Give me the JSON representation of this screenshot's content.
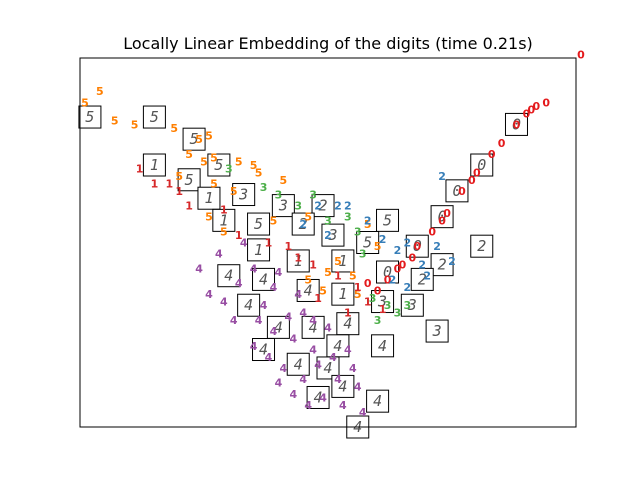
{
  "chart_data": {
    "type": "scatter",
    "title": "Locally Linear Embedding of the digits (time 0.21s)",
    "xlabel": "",
    "ylabel": "",
    "xlim": [
      0,
      1
    ],
    "ylim": [
      0,
      1
    ],
    "grid": false,
    "axis_ticks": false,
    "colors": {
      "0": "#e41a1c",
      "1": "#d62728",
      "2": "#377eb8",
      "3": "#4daf4a",
      "4": "#984ea3",
      "5": "#ff7f00"
    },
    "points": [
      {
        "label": "0",
        "x": 1.01,
        "y": 1.01
      },
      {
        "label": "0",
        "x": 0.92,
        "y": 0.87
      },
      {
        "label": "0",
        "x": 0.91,
        "y": 0.86
      },
      {
        "label": "0",
        "x": 0.9,
        "y": 0.85
      },
      {
        "label": "0",
        "x": 0.85,
        "y": 0.77
      },
      {
        "label": "0",
        "x": 0.83,
        "y": 0.74
      },
      {
        "label": "0",
        "x": 0.8,
        "y": 0.69
      },
      {
        "label": "0",
        "x": 0.77,
        "y": 0.64
      },
      {
        "label": "0",
        "x": 0.74,
        "y": 0.58
      },
      {
        "label": "0",
        "x": 0.71,
        "y": 0.53
      },
      {
        "label": "0",
        "x": 0.68,
        "y": 0.49
      },
      {
        "label": "0",
        "x": 0.65,
        "y": 0.44
      },
      {
        "label": "0",
        "x": 0.64,
        "y": 0.43
      },
      {
        "label": "0",
        "x": 0.62,
        "y": 0.4
      },
      {
        "label": "0",
        "x": 0.6,
        "y": 0.37
      },
      {
        "label": "0",
        "x": 0.67,
        "y": 0.46
      },
      {
        "label": "0",
        "x": 0.73,
        "y": 0.56
      },
      {
        "label": "0",
        "x": 0.79,
        "y": 0.67
      },
      {
        "label": "0",
        "x": 0.88,
        "y": 0.82
      },
      {
        "label": "0",
        "x": 0.94,
        "y": 0.88
      },
      {
        "label": "0",
        "x": 0.58,
        "y": 0.39
      },
      {
        "label": "5",
        "x": 0.04,
        "y": 0.91
      },
      {
        "label": "5",
        "x": 0.01,
        "y": 0.88
      },
      {
        "label": "5",
        "x": 0.07,
        "y": 0.83
      },
      {
        "label": "5",
        "x": 0.11,
        "y": 0.82
      },
      {
        "label": "5",
        "x": 0.19,
        "y": 0.81
      },
      {
        "label": "5",
        "x": 0.26,
        "y": 0.79
      },
      {
        "label": "5",
        "x": 0.24,
        "y": 0.78
      },
      {
        "label": "5",
        "x": 0.22,
        "y": 0.74
      },
      {
        "label": "5",
        "x": 0.25,
        "y": 0.72
      },
      {
        "label": "5",
        "x": 0.27,
        "y": 0.73
      },
      {
        "label": "5",
        "x": 0.32,
        "y": 0.72
      },
      {
        "label": "5",
        "x": 0.35,
        "y": 0.71
      },
      {
        "label": "5",
        "x": 0.36,
        "y": 0.69
      },
      {
        "label": "5",
        "x": 0.41,
        "y": 0.67
      },
      {
        "label": "5",
        "x": 0.2,
        "y": 0.68
      },
      {
        "label": "5",
        "x": 0.27,
        "y": 0.66
      },
      {
        "label": "5",
        "x": 0.31,
        "y": 0.64
      },
      {
        "label": "5",
        "x": 0.26,
        "y": 0.57
      },
      {
        "label": "5",
        "x": 0.29,
        "y": 0.53
      },
      {
        "label": "5",
        "x": 0.39,
        "y": 0.56
      },
      {
        "label": "5",
        "x": 0.46,
        "y": 0.57
      },
      {
        "label": "5",
        "x": 0.58,
        "y": 0.55
      },
      {
        "label": "5",
        "x": 0.6,
        "y": 0.49
      },
      {
        "label": "5",
        "x": 0.52,
        "y": 0.45
      },
      {
        "label": "5",
        "x": 0.55,
        "y": 0.41
      },
      {
        "label": "5",
        "x": 0.46,
        "y": 0.4
      },
      {
        "label": "5",
        "x": 0.49,
        "y": 0.37
      },
      {
        "label": "5",
        "x": 0.5,
        "y": 0.42
      },
      {
        "label": "5",
        "x": 0.56,
        "y": 0.36
      },
      {
        "label": "1",
        "x": 0.12,
        "y": 0.7
      },
      {
        "label": "1",
        "x": 0.15,
        "y": 0.66
      },
      {
        "label": "1",
        "x": 0.18,
        "y": 0.66
      },
      {
        "label": "1",
        "x": 0.2,
        "y": 0.64
      },
      {
        "label": "1",
        "x": 0.22,
        "y": 0.6
      },
      {
        "label": "1",
        "x": 0.29,
        "y": 0.59
      },
      {
        "label": "1",
        "x": 0.32,
        "y": 0.52
      },
      {
        "label": "1",
        "x": 0.42,
        "y": 0.49
      },
      {
        "label": "1",
        "x": 0.44,
        "y": 0.46
      },
      {
        "label": "1",
        "x": 0.47,
        "y": 0.44
      },
      {
        "label": "1",
        "x": 0.52,
        "y": 0.41
      },
      {
        "label": "1",
        "x": 0.56,
        "y": 0.38
      },
      {
        "label": "1",
        "x": 0.58,
        "y": 0.34
      },
      {
        "label": "1",
        "x": 0.61,
        "y": 0.32
      },
      {
        "label": "1",
        "x": 0.54,
        "y": 0.31
      },
      {
        "label": "1",
        "x": 0.48,
        "y": 0.35
      },
      {
        "label": "1",
        "x": 0.38,
        "y": 0.5
      },
      {
        "label": "2",
        "x": 0.73,
        "y": 0.68
      },
      {
        "label": "2",
        "x": 0.54,
        "y": 0.6
      },
      {
        "label": "2",
        "x": 0.58,
        "y": 0.56
      },
      {
        "label": "2",
        "x": 0.61,
        "y": 0.51
      },
      {
        "label": "2",
        "x": 0.64,
        "y": 0.48
      },
      {
        "label": "2",
        "x": 0.66,
        "y": 0.5
      },
      {
        "label": "2",
        "x": 0.72,
        "y": 0.49
      },
      {
        "label": "2",
        "x": 0.69,
        "y": 0.44
      },
      {
        "label": "2",
        "x": 0.75,
        "y": 0.45
      },
      {
        "label": "2",
        "x": 0.7,
        "y": 0.41
      },
      {
        "label": "2",
        "x": 0.63,
        "y": 0.4
      },
      {
        "label": "2",
        "x": 0.66,
        "y": 0.38
      },
      {
        "label": "2",
        "x": 0.45,
        "y": 0.55
      },
      {
        "label": "2",
        "x": 0.48,
        "y": 0.6
      },
      {
        "label": "2",
        "x": 0.52,
        "y": 0.6
      },
      {
        "label": "2",
        "x": 0.5,
        "y": 0.52
      },
      {
        "label": "3",
        "x": 0.3,
        "y": 0.7
      },
      {
        "label": "3",
        "x": 0.37,
        "y": 0.65
      },
      {
        "label": "3",
        "x": 0.4,
        "y": 0.63
      },
      {
        "label": "3",
        "x": 0.44,
        "y": 0.6
      },
      {
        "label": "3",
        "x": 0.47,
        "y": 0.63
      },
      {
        "label": "3",
        "x": 0.54,
        "y": 0.57
      },
      {
        "label": "3",
        "x": 0.5,
        "y": 0.56
      },
      {
        "label": "3",
        "x": 0.56,
        "y": 0.53
      },
      {
        "label": "3",
        "x": 0.59,
        "y": 0.35
      },
      {
        "label": "3",
        "x": 0.62,
        "y": 0.33
      },
      {
        "label": "3",
        "x": 0.64,
        "y": 0.31
      },
      {
        "label": "3",
        "x": 0.6,
        "y": 0.29
      },
      {
        "label": "3",
        "x": 0.66,
        "y": 0.33
      },
      {
        "label": "3",
        "x": 0.57,
        "y": 0.47
      },
      {
        "label": "4",
        "x": 0.33,
        "y": 0.5
      },
      {
        "label": "4",
        "x": 0.35,
        "y": 0.43
      },
      {
        "label": "4",
        "x": 0.39,
        "y": 0.38
      },
      {
        "label": "4",
        "x": 0.4,
        "y": 0.42
      },
      {
        "label": "4",
        "x": 0.32,
        "y": 0.39
      },
      {
        "label": "4",
        "x": 0.28,
        "y": 0.47
      },
      {
        "label": "4",
        "x": 0.29,
        "y": 0.34
      },
      {
        "label": "4",
        "x": 0.26,
        "y": 0.36
      },
      {
        "label": "4",
        "x": 0.37,
        "y": 0.33
      },
      {
        "label": "4",
        "x": 0.44,
        "y": 0.36
      },
      {
        "label": "4",
        "x": 0.36,
        "y": 0.29
      },
      {
        "label": "4",
        "x": 0.39,
        "y": 0.26
      },
      {
        "label": "4",
        "x": 0.43,
        "y": 0.24
      },
      {
        "label": "4",
        "x": 0.47,
        "y": 0.21
      },
      {
        "label": "4",
        "x": 0.5,
        "y": 0.27
      },
      {
        "label": "4",
        "x": 0.48,
        "y": 0.17
      },
      {
        "label": "4",
        "x": 0.51,
        "y": 0.19
      },
      {
        "label": "4",
        "x": 0.54,
        "y": 0.21
      },
      {
        "label": "4",
        "x": 0.55,
        "y": 0.16
      },
      {
        "label": "4",
        "x": 0.52,
        "y": 0.13
      },
      {
        "label": "4",
        "x": 0.56,
        "y": 0.11
      },
      {
        "label": "4",
        "x": 0.49,
        "y": 0.08
      },
      {
        "label": "4",
        "x": 0.45,
        "y": 0.13
      },
      {
        "label": "4",
        "x": 0.43,
        "y": 0.09
      },
      {
        "label": "4",
        "x": 0.41,
        "y": 0.16
      },
      {
        "label": "4",
        "x": 0.38,
        "y": 0.19
      },
      {
        "label": "4",
        "x": 0.35,
        "y": 0.22
      },
      {
        "label": "4",
        "x": 0.4,
        "y": 0.12
      },
      {
        "label": "4",
        "x": 0.46,
        "y": 0.06
      },
      {
        "label": "4",
        "x": 0.53,
        "y": 0.06
      },
      {
        "label": "4",
        "x": 0.57,
        "y": 0.04
      },
      {
        "label": "4",
        "x": 0.42,
        "y": 0.3
      },
      {
        "label": "4",
        "x": 0.31,
        "y": 0.29
      },
      {
        "label": "4",
        "x": 0.24,
        "y": 0.43
      },
      {
        "label": "4",
        "x": 0.45,
        "y": 0.31
      },
      {
        "label": "4",
        "x": 0.47,
        "y": 0.29
      }
    ],
    "thumbnails": [
      {
        "label": "5",
        "x": 0.02,
        "y": 0.84
      },
      {
        "label": "5",
        "x": 0.15,
        "y": 0.84
      },
      {
        "label": "5",
        "x": 0.23,
        "y": 0.78
      },
      {
        "label": "5",
        "x": 0.28,
        "y": 0.71
      },
      {
        "label": "1",
        "x": 0.15,
        "y": 0.71
      },
      {
        "label": "5",
        "x": 0.22,
        "y": 0.67
      },
      {
        "label": "1",
        "x": 0.26,
        "y": 0.62
      },
      {
        "label": "3",
        "x": 0.33,
        "y": 0.63
      },
      {
        "label": "1",
        "x": 0.29,
        "y": 0.56
      },
      {
        "label": "5",
        "x": 0.36,
        "y": 0.55
      },
      {
        "label": "3",
        "x": 0.41,
        "y": 0.6
      },
      {
        "label": "2",
        "x": 0.49,
        "y": 0.6
      },
      {
        "label": "2",
        "x": 0.45,
        "y": 0.55
      },
      {
        "label": "3",
        "x": 0.51,
        "y": 0.52
      },
      {
        "label": "5",
        "x": 0.62,
        "y": 0.56
      },
      {
        "label": "5",
        "x": 0.58,
        "y": 0.5
      },
      {
        "label": "1",
        "x": 0.36,
        "y": 0.48
      },
      {
        "label": "4",
        "x": 0.3,
        "y": 0.41
      },
      {
        "label": "4",
        "x": 0.37,
        "y": 0.4
      },
      {
        "label": "1",
        "x": 0.44,
        "y": 0.45
      },
      {
        "label": "1",
        "x": 0.53,
        "y": 0.45
      },
      {
        "label": "0",
        "x": 0.62,
        "y": 0.42
      },
      {
        "label": "0",
        "x": 0.68,
        "y": 0.49
      },
      {
        "label": "0",
        "x": 0.73,
        "y": 0.57
      },
      {
        "label": "0",
        "x": 0.76,
        "y": 0.64
      },
      {
        "label": "0",
        "x": 0.81,
        "y": 0.71
      },
      {
        "label": "0",
        "x": 0.88,
        "y": 0.82
      },
      {
        "label": "2",
        "x": 0.81,
        "y": 0.49
      },
      {
        "label": "2",
        "x": 0.73,
        "y": 0.44
      },
      {
        "label": "2",
        "x": 0.69,
        "y": 0.4
      },
      {
        "label": "4",
        "x": 0.34,
        "y": 0.33
      },
      {
        "label": "4",
        "x": 0.46,
        "y": 0.37
      },
      {
        "label": "1",
        "x": 0.53,
        "y": 0.36
      },
      {
        "label": "3",
        "x": 0.61,
        "y": 0.34
      },
      {
        "label": "3",
        "x": 0.67,
        "y": 0.33
      },
      {
        "label": "3",
        "x": 0.72,
        "y": 0.26
      },
      {
        "label": "4",
        "x": 0.4,
        "y": 0.27
      },
      {
        "label": "4",
        "x": 0.47,
        "y": 0.27
      },
      {
        "label": "4",
        "x": 0.54,
        "y": 0.28
      },
      {
        "label": "4",
        "x": 0.37,
        "y": 0.21
      },
      {
        "label": "4",
        "x": 0.52,
        "y": 0.22
      },
      {
        "label": "4",
        "x": 0.61,
        "y": 0.22
      },
      {
        "label": "4",
        "x": 0.44,
        "y": 0.17
      },
      {
        "label": "4",
        "x": 0.5,
        "y": 0.16
      },
      {
        "label": "4",
        "x": 0.53,
        "y": 0.11
      },
      {
        "label": "4",
        "x": 0.48,
        "y": 0.08
      },
      {
        "label": "4",
        "x": 0.6,
        "y": 0.07
      },
      {
        "label": "4",
        "x": 0.56,
        "y": 0.0
      }
    ]
  }
}
